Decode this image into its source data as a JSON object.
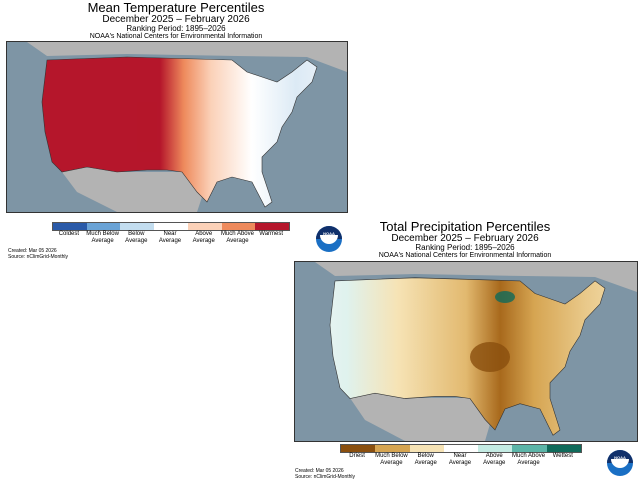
{
  "temperature": {
    "title": "Mean Temperature Percentiles",
    "period": "December 2025 – February 2026",
    "ranking": "Ranking Period: 1895–2026",
    "source_org": "NOAA's National Centers for Environmental Information",
    "legend": [
      {
        "label": "Coldest",
        "color": "#2a5aa8"
      },
      {
        "label": "Much Below Average",
        "color": "#6aa3d6"
      },
      {
        "label": "Below Average",
        "color": "#c3ddef"
      },
      {
        "label": "Near Average",
        "color": "#ffffff"
      },
      {
        "label": "Above Average",
        "color": "#fbd1b8"
      },
      {
        "label": "Much Above Average",
        "color": "#ee8a5c"
      },
      {
        "label": "Warmest",
        "color": "#b5162b"
      }
    ],
    "created": "Created: Mar 05 2026",
    "source": "Source: nClimGrid-Monthly",
    "logo": "NOAA"
  },
  "precipitation": {
    "title": "Total Precipitation Percentiles",
    "period": "December 2025 – February 2026",
    "ranking": "Ranking Period: 1895–2026",
    "source_org": "NOAA's National Centers for Environmental Information",
    "legend": [
      {
        "label": "Driest",
        "color": "#8a4f0e"
      },
      {
        "label": "Much Below Average",
        "color": "#d6a552"
      },
      {
        "label": "Below Average",
        "color": "#f6e3b5"
      },
      {
        "label": "Near Average",
        "color": "#ffffff"
      },
      {
        "label": "Above Average",
        "color": "#c4ebe3"
      },
      {
        "label": "Much Above Average",
        "color": "#5cb5a8"
      },
      {
        "label": "Wettest",
        "color": "#0f6a5a"
      }
    ],
    "created": "Created: Mar 05 2026",
    "source": "Source: nClimGrid-Monthly",
    "logo": "NOAA"
  },
  "colors": {
    "ocean": "#7e95a5",
    "land_outside": "#b3b3b3"
  }
}
